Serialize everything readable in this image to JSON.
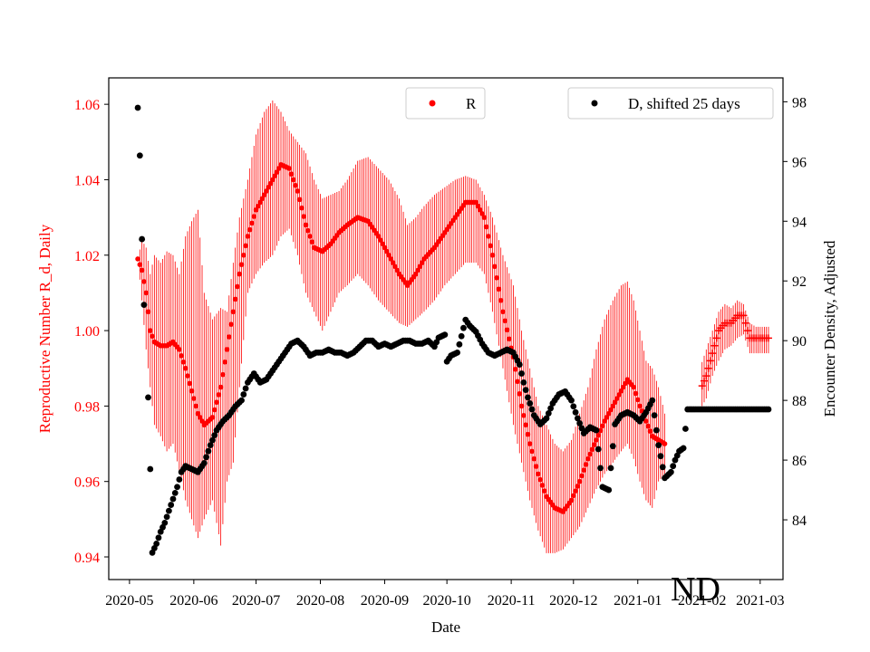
{
  "chart_data": {
    "type": "scatter",
    "xlabel": "Date",
    "ylabel_left": "Reproductive Number R_d, Daily",
    "ylabel_right": "Encounter Density, Adjusted",
    "watermark": "ND",
    "x_range_days": [
      -10,
      315
    ],
    "ylim_left": [
      0.934,
      1.067
    ],
    "ylim_right": [
      82.0,
      98.8
    ],
    "x_ticks": [
      {
        "day": 0,
        "label": "2020-05"
      },
      {
        "day": 31,
        "label": "2020-06"
      },
      {
        "day": 61,
        "label": "2020-07"
      },
      {
        "day": 92,
        "label": "2020-08"
      },
      {
        "day": 123,
        "label": "2020-09"
      },
      {
        "day": 153,
        "label": "2020-10"
      },
      {
        "day": 184,
        "label": "2020-11"
      },
      {
        "day": 214,
        "label": "2020-12"
      },
      {
        "day": 245,
        "label": "2021-01"
      },
      {
        "day": 276,
        "label": "2021-02"
      },
      {
        "day": 304,
        "label": "2021-03"
      }
    ],
    "y_ticks_left": [
      "0.94",
      "0.96",
      "0.98",
      "1.00",
      "1.02",
      "1.04",
      "1.06"
    ],
    "y_ticks_right": [
      "84",
      "86",
      "88",
      "90",
      "92",
      "94",
      "96",
      "98"
    ],
    "colors": {
      "R": "#ff0000",
      "D": "#000000",
      "axis_left": "#ff0000",
      "axis_right": "#000000"
    },
    "legend": [
      {
        "name": "R",
        "color": "#ff0000",
        "position": "top-center"
      },
      {
        "name": "D, shifted 25 days",
        "color": "#000000",
        "position": "top-right"
      }
    ],
    "series": [
      {
        "name": "R",
        "axis": "left",
        "color": "#ff0000",
        "note": "daily values with error bars (lo, hi); from day 275 onward shown as + markers",
        "points": [
          [
            4,
            1.019,
            1.019,
            1.019
          ],
          [
            6,
            1.016,
            1.008,
            1.024
          ],
          [
            8,
            1.01,
            0.995,
            1.022
          ],
          [
            10,
            1.0,
            0.985,
            1.015
          ],
          [
            12,
            0.997,
            0.975,
            1.02
          ],
          [
            15,
            0.996,
            0.972,
            1.018
          ],
          [
            18,
            0.996,
            0.968,
            1.021
          ],
          [
            21,
            0.997,
            0.97,
            1.02
          ],
          [
            24,
            0.995,
            0.963,
            1.015
          ],
          [
            27,
            0.99,
            0.955,
            1.025
          ],
          [
            30,
            0.984,
            0.95,
            1.029
          ],
          [
            33,
            0.978,
            0.945,
            1.032
          ],
          [
            36,
            0.975,
            0.95,
            1.01
          ],
          [
            40,
            0.977,
            0.955,
            1.003
          ],
          [
            44,
            0.985,
            0.943,
            1.006
          ],
          [
            47,
            0.995,
            0.96,
            1.005
          ],
          [
            50,
            1.005,
            0.965,
            1.018
          ],
          [
            53,
            1.015,
            0.985,
            1.03
          ],
          [
            57,
            1.025,
            1.01,
            1.04
          ],
          [
            61,
            1.032,
            1.015,
            1.052
          ],
          [
            65,
            1.036,
            1.018,
            1.058
          ],
          [
            69,
            1.04,
            1.02,
            1.061
          ],
          [
            73,
            1.044,
            1.025,
            1.058
          ],
          [
            77,
            1.043,
            1.027,
            1.053
          ],
          [
            81,
            1.037,
            1.02,
            1.05
          ],
          [
            85,
            1.028,
            1.01,
            1.047
          ],
          [
            89,
            1.022,
            1.005,
            1.04
          ],
          [
            93,
            1.021,
            1.0,
            1.035
          ],
          [
            97,
            1.023,
            1.005,
            1.036
          ],
          [
            101,
            1.026,
            1.01,
            1.037
          ],
          [
            105,
            1.028,
            1.012,
            1.04
          ],
          [
            110,
            1.03,
            1.015,
            1.045
          ],
          [
            115,
            1.029,
            1.012,
            1.046
          ],
          [
            120,
            1.025,
            1.008,
            1.043
          ],
          [
            125,
            1.02,
            1.005,
            1.04
          ],
          [
            130,
            1.015,
            1.002,
            1.035
          ],
          [
            134,
            1.012,
            1.001,
            1.028
          ],
          [
            138,
            1.015,
            1.003,
            1.03
          ],
          [
            142,
            1.019,
            1.005,
            1.033
          ],
          [
            147,
            1.022,
            1.008,
            1.036
          ],
          [
            152,
            1.026,
            1.012,
            1.038
          ],
          [
            157,
            1.03,
            1.015,
            1.04
          ],
          [
            162,
            1.034,
            1.018,
            1.041
          ],
          [
            167,
            1.034,
            1.018,
            1.04
          ],
          [
            171,
            1.03,
            1.015,
            1.036
          ],
          [
            175,
            1.02,
            1.005,
            1.03
          ],
          [
            180,
            1.005,
            0.99,
            1.02
          ],
          [
            185,
            0.993,
            0.975,
            1.012
          ],
          [
            189,
            0.98,
            0.965,
            1.0
          ],
          [
            193,
            0.97,
            0.955,
            0.99
          ],
          [
            197,
            0.962,
            0.947,
            0.98
          ],
          [
            201,
            0.956,
            0.941,
            0.975
          ],
          [
            205,
            0.953,
            0.941,
            0.97
          ],
          [
            209,
            0.952,
            0.942,
            0.968
          ],
          [
            213,
            0.955,
            0.945,
            0.971
          ],
          [
            217,
            0.96,
            0.948,
            0.978
          ],
          [
            221,
            0.966,
            0.953,
            0.985
          ],
          [
            225,
            0.971,
            0.958,
            0.995
          ],
          [
            229,
            0.976,
            0.962,
            1.003
          ],
          [
            233,
            0.98,
            0.965,
            1.008
          ],
          [
            237,
            0.984,
            0.968,
            1.012
          ],
          [
            240,
            0.987,
            0.97,
            1.013
          ],
          [
            243,
            0.985,
            0.966,
            1.008
          ],
          [
            246,
            0.98,
            0.96,
            1.0
          ],
          [
            249,
            0.976,
            0.955,
            0.992
          ],
          [
            252,
            0.972,
            0.953,
            0.99
          ],
          [
            255,
            0.971,
            0.96,
            0.985
          ],
          [
            258,
            0.97,
            0.962,
            0.978
          ],
          [
            275,
            0.984,
            0.979,
            0.99
          ],
          [
            278,
            0.988,
            0.982,
            0.995
          ],
          [
            281,
            0.994,
            0.988,
            1.0
          ],
          [
            284,
            1.0,
            0.992,
            1.005
          ],
          [
            287,
            1.002,
            0.995,
            1.007
          ],
          [
            290,
            1.002,
            0.996,
            1.006
          ],
          [
            293,
            1.004,
            0.998,
            1.008
          ],
          [
            296,
            1.004,
            0.999,
            1.007
          ],
          [
            299,
            0.998,
            0.994,
            1.002
          ],
          [
            302,
            0.998,
            0.994,
            1.001
          ],
          [
            305,
            0.998,
            0.994,
            1.001
          ],
          [
            308,
            0.998,
            0.994,
            1.001
          ]
        ]
      },
      {
        "name": "D, shifted 25 days",
        "axis": "right",
        "color": "#000000",
        "points": [
          [
            4,
            97.8
          ],
          [
            5,
            96.2
          ],
          [
            6,
            93.4
          ],
          [
            7,
            91.2
          ],
          [
            9,
            88.1
          ],
          [
            10,
            85.7
          ],
          [
            11,
            82.9
          ],
          [
            13,
            83.2
          ],
          [
            15,
            83.6
          ],
          [
            17,
            83.9
          ],
          [
            19,
            84.3
          ],
          [
            21,
            84.7
          ],
          [
            23,
            85.1
          ],
          [
            25,
            85.6
          ],
          [
            27,
            85.8
          ],
          [
            30,
            85.7
          ],
          [
            33,
            85.6
          ],
          [
            36,
            85.9
          ],
          [
            39,
            86.5
          ],
          [
            42,
            87.0
          ],
          [
            45,
            87.3
          ],
          [
            48,
            87.5
          ],
          [
            51,
            87.8
          ],
          [
            54,
            88.0
          ],
          [
            57,
            88.6
          ],
          [
            60,
            88.9
          ],
          [
            63,
            88.6
          ],
          [
            66,
            88.7
          ],
          [
            69,
            89.0
          ],
          [
            72,
            89.3
          ],
          [
            75,
            89.6
          ],
          [
            78,
            89.9
          ],
          [
            81,
            90.0
          ],
          [
            84,
            89.8
          ],
          [
            87,
            89.5
          ],
          [
            90,
            89.6
          ],
          [
            93,
            89.6
          ],
          [
            96,
            89.7
          ],
          [
            99,
            89.6
          ],
          [
            102,
            89.6
          ],
          [
            105,
            89.5
          ],
          [
            108,
            89.6
          ],
          [
            111,
            89.8
          ],
          [
            114,
            90.0
          ],
          [
            117,
            90.0
          ],
          [
            120,
            89.8
          ],
          [
            123,
            89.9
          ],
          [
            126,
            89.8
          ],
          [
            129,
            89.9
          ],
          [
            132,
            90.0
          ],
          [
            135,
            90.0
          ],
          [
            138,
            89.9
          ],
          [
            141,
            89.9
          ],
          [
            144,
            90.0
          ],
          [
            147,
            89.8
          ],
          [
            149,
            90.1
          ],
          [
            152,
            90.2
          ],
          [
            153,
            89.3
          ],
          [
            155,
            89.5
          ],
          [
            158,
            89.6
          ],
          [
            162,
            90.7
          ],
          [
            164,
            90.5
          ],
          [
            167,
            90.3
          ],
          [
            170,
            89.9
          ],
          [
            173,
            89.6
          ],
          [
            176,
            89.5
          ],
          [
            179,
            89.6
          ],
          [
            182,
            89.7
          ],
          [
            185,
            89.6
          ],
          [
            188,
            89.2
          ],
          [
            190,
            88.6
          ],
          [
            192,
            88.1
          ],
          [
            195,
            87.5
          ],
          [
            198,
            87.2
          ],
          [
            201,
            87.4
          ],
          [
            204,
            87.9
          ],
          [
            207,
            88.2
          ],
          [
            210,
            88.3
          ],
          [
            213,
            88.0
          ],
          [
            216,
            87.4
          ],
          [
            219,
            86.9
          ],
          [
            222,
            87.1
          ],
          [
            225,
            87.0
          ],
          [
            228,
            85.1
          ],
          [
            231,
            85.0
          ],
          [
            234,
            87.2
          ],
          [
            237,
            87.5
          ],
          [
            240,
            87.6
          ],
          [
            243,
            87.5
          ],
          [
            246,
            87.3
          ],
          [
            249,
            87.6
          ],
          [
            252,
            88.0
          ],
          [
            255,
            86.5
          ],
          [
            258,
            85.4
          ],
          [
            261,
            85.6
          ],
          [
            263,
            86.0
          ],
          [
            265,
            86.3
          ],
          [
            267,
            86.4
          ],
          [
            269,
            87.7
          ],
          [
            272,
            87.7
          ],
          [
            275,
            87.7
          ],
          [
            278,
            87.7
          ],
          [
            281,
            87.7
          ],
          [
            284,
            87.7
          ],
          [
            287,
            87.7
          ],
          [
            290,
            87.7
          ],
          [
            293,
            87.7
          ],
          [
            296,
            87.7
          ],
          [
            299,
            87.7
          ],
          [
            302,
            87.7
          ],
          [
            305,
            87.7
          ],
          [
            308,
            87.7
          ]
        ]
      }
    ]
  }
}
